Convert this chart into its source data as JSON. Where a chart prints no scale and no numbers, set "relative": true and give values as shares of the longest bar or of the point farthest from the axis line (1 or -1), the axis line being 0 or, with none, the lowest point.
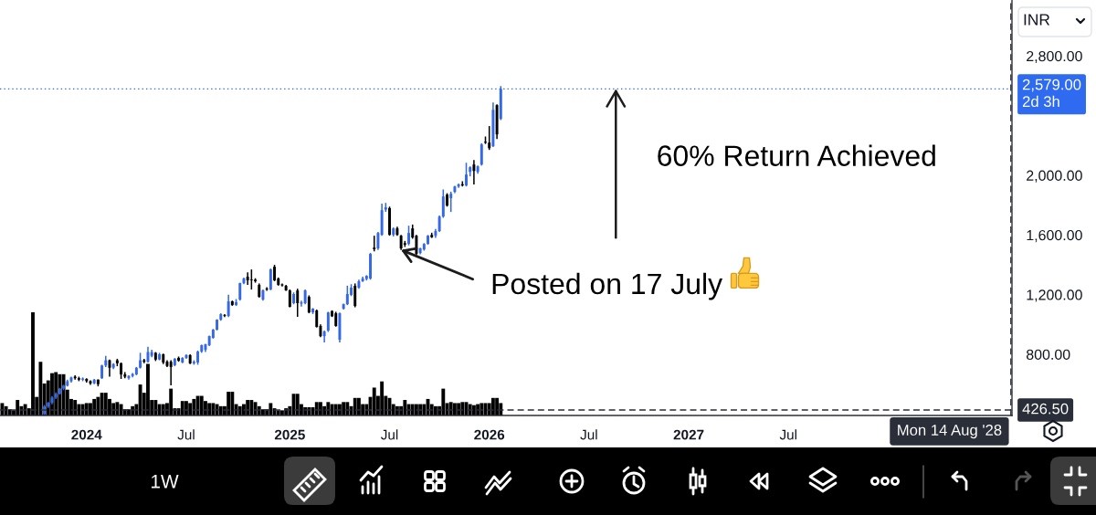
{
  "chart_data": [
    {
      "type": "candlestick",
      "x": [
        "2023-10-16",
        "2023-10-23",
        "2023-10-30",
        "2023-11-06",
        "2023-11-13",
        "2023-11-20",
        "2023-11-27",
        "2023-12-04",
        "2023-12-11",
        "2023-12-18",
        "2023-12-25",
        "2024-01-01",
        "2024-01-08",
        "2024-01-15",
        "2024-01-22",
        "2024-01-29",
        "2024-02-05",
        "2024-02-12",
        "2024-02-19",
        "2024-02-26",
        "2024-03-04",
        "2024-03-11",
        "2024-03-18",
        "2024-03-25",
        "2024-04-01",
        "2024-04-08",
        "2024-04-15",
        "2024-04-22",
        "2024-04-29",
        "2024-05-06",
        "2024-05-13",
        "2024-05-20",
        "2024-05-27",
        "2024-06-03",
        "2024-06-10",
        "2024-06-17",
        "2024-06-24",
        "2024-07-01",
        "2024-07-08",
        "2024-07-15",
        "2024-07-22",
        "2024-07-29",
        "2024-08-05",
        "2024-08-12",
        "2024-08-19",
        "2024-08-26",
        "2024-09-02",
        "2024-09-09",
        "2024-09-16",
        "2024-09-23",
        "2024-09-30",
        "2024-10-07",
        "2024-10-14",
        "2024-10-21",
        "2024-10-28",
        "2024-11-04",
        "2024-11-11",
        "2024-11-18",
        "2024-11-25",
        "2024-12-02",
        "2024-12-09",
        "2024-12-16",
        "2024-12-23",
        "2024-12-30",
        "2025-01-06",
        "2025-01-13",
        "2025-01-20",
        "2025-01-27",
        "2025-02-03",
        "2025-02-10",
        "2025-02-17",
        "2025-02-24",
        "2025-03-03",
        "2025-03-10",
        "2025-03-17",
        "2025-03-24",
        "2025-03-31",
        "2025-04-07",
        "2025-04-14",
        "2025-04-21",
        "2025-04-28",
        "2025-05-05",
        "2025-05-12",
        "2025-05-19",
        "2025-05-26",
        "2025-06-02",
        "2025-06-09",
        "2025-06-16",
        "2025-06-23",
        "2025-06-30",
        "2025-07-07",
        "2025-07-14",
        "2025-07-21",
        "2025-07-28",
        "2025-08-04",
        "2025-08-11",
        "2025-08-18",
        "2025-08-25",
        "2025-09-01",
        "2025-09-08",
        "2025-09-15",
        "2025-09-22",
        "2025-09-29",
        "2025-10-06",
        "2025-10-13",
        "2025-10-20",
        "2025-10-27",
        "2025-11-03",
        "2025-11-10",
        "2025-11-17",
        "2025-11-24",
        "2025-12-01",
        "2025-12-08",
        "2025-12-15",
        "2025-12-22",
        "2025-12-29",
        "2026-01-05",
        "2026-01-12",
        "2026-01-19",
        "2026-01-26"
      ],
      "ohlc": [
        [
          400,
          460,
          395,
          450
        ],
        [
          450,
          480,
          440,
          475
        ],
        [
          475,
          520,
          465,
          510
        ],
        [
          510,
          545,
          500,
          535
        ],
        [
          535,
          575,
          530,
          570
        ],
        [
          570,
          595,
          560,
          590
        ],
        [
          590,
          630,
          585,
          620
        ],
        [
          620,
          650,
          610,
          645
        ],
        [
          650,
          660,
          630,
          640
        ],
        [
          640,
          650,
          620,
          630
        ],
        [
          630,
          645,
          620,
          638
        ],
        [
          635,
          640,
          610,
          620
        ],
        [
          620,
          625,
          595,
          605
        ],
        [
          605,
          635,
          600,
          630
        ],
        [
          630,
          632,
          585,
          600
        ],
        [
          640,
          730,
          635,
          725
        ],
        [
          725,
          790,
          715,
          760
        ],
        [
          760,
          765,
          650,
          710
        ],
        [
          710,
          740,
          700,
          735
        ],
        [
          760,
          770,
          720,
          740
        ],
        [
          740,
          745,
          635,
          665
        ],
        [
          665,
          680,
          640,
          650
        ],
        [
          640,
          660,
          630,
          655
        ],
        [
          655,
          675,
          645,
          668
        ],
        [
          665,
          715,
          660,
          710
        ],
        [
          710,
          810,
          705,
          760
        ],
        [
          760,
          770,
          740,
          750
        ],
        [
          750,
          850,
          745,
          815
        ],
        [
          790,
          830,
          780,
          815
        ],
        [
          810,
          815,
          755,
          765
        ],
        [
          765,
          810,
          760,
          800
        ],
        [
          800,
          805,
          735,
          745
        ],
        [
          750,
          760,
          715,
          722
        ],
        [
          750,
          760,
          592,
          715
        ],
        [
          727,
          775,
          720,
          770
        ],
        [
          776,
          785,
          750,
          757
        ],
        [
          745,
          780,
          740,
          776
        ],
        [
          776,
          800,
          770,
          794
        ],
        [
          794,
          800,
          735,
          739
        ],
        [
          740,
          760,
          730,
          750
        ],
        [
          745,
          825,
          730,
          818
        ],
        [
          818,
          865,
          810,
          861
        ],
        [
          830,
          870,
          815,
          867
        ],
        [
          861,
          925,
          855,
          922
        ],
        [
          910,
          970,
          905,
          965
        ],
        [
          965,
          1035,
          960,
          1032
        ],
        [
          1032,
          1075,
          1025,
          1069
        ],
        [
          1062,
          1070,
          1050,
          1057
        ],
        [
          1057,
          1200,
          1050,
          1155
        ],
        [
          1155,
          1160,
          1125,
          1130
        ],
        [
          1130,
          1170,
          1125,
          1150
        ],
        [
          1167,
          1280,
          1160,
          1277
        ],
        [
          1277,
          1315,
          1270,
          1308
        ],
        [
          1320,
          1350,
          1265,
          1296
        ],
        [
          1300,
          1369,
          1234,
          1296
        ],
        [
          1300,
          1310,
          1280,
          1290
        ],
        [
          1265,
          1275,
          1180,
          1185
        ],
        [
          1167,
          1235,
          1160,
          1228
        ],
        [
          1240,
          1250,
          1225,
          1234
        ],
        [
          1234,
          1375,
          1230,
          1369
        ],
        [
          1387,
          1400,
          1290,
          1296
        ],
        [
          1308,
          1315,
          1260,
          1265
        ],
        [
          1268,
          1275,
          1255,
          1262
        ],
        [
          1259,
          1265,
          1225,
          1228
        ],
        [
          1228,
          1235,
          1115,
          1118
        ],
        [
          1143,
          1215,
          1135,
          1204
        ],
        [
          1228,
          1240,
          1051,
          1143
        ],
        [
          1140,
          1160,
          1120,
          1148
        ],
        [
          1143,
          1235,
          1135,
          1228
        ],
        [
          1185,
          1195,
          1075,
          1081
        ],
        [
          1081,
          1110,
          1070,
          1106
        ],
        [
          1094,
          1100,
          980,
          983
        ],
        [
          990,
          1000,
          915,
          922
        ],
        [
          922,
          960,
          880,
          953
        ],
        [
          959,
          1085,
          950,
          1081
        ],
        [
          1090,
          1095,
          1050,
          1055
        ],
        [
          1075,
          1085,
          985,
          990
        ],
        [
          898,
          1080,
          880,
          1075
        ],
        [
          1106,
          1140,
          1100,
          1136
        ],
        [
          1136,
          1260,
          1130,
          1204
        ],
        [
          1198,
          1270,
          1190,
          1247
        ],
        [
          1259,
          1275,
          1115,
          1124
        ],
        [
          1247,
          1300,
          1240,
          1290
        ],
        [
          1290,
          1320,
          1285,
          1308
        ],
        [
          1305,
          1330,
          1295,
          1326
        ],
        [
          1308,
          1480,
          1300,
          1473
        ],
        [
          1515,
          1595,
          1490,
          1505
        ],
        [
          1510,
          1620,
          1500,
          1613
        ],
        [
          1601,
          1810,
          1595,
          1766
        ],
        [
          1770,
          1815,
          1755,
          1785
        ],
        [
          1780,
          1790,
          1595,
          1601
        ],
        [
          1601,
          1650,
          1590,
          1644
        ],
        [
          1644,
          1655,
          1595,
          1601
        ],
        [
          1595,
          1600,
          1500,
          1510
        ],
        [
          1545,
          1560,
          1520,
          1535
        ],
        [
          1540,
          1662,
          1530,
          1613
        ],
        [
          1644,
          1670,
          1575,
          1583
        ],
        [
          1595,
          1600,
          1465,
          1473
        ],
        [
          1479,
          1515,
          1470,
          1510
        ],
        [
          1503,
          1545,
          1495,
          1540
        ],
        [
          1540,
          1600,
          1535,
          1595
        ],
        [
          1600,
          1615,
          1580,
          1585
        ],
        [
          1595,
          1640,
          1580,
          1626
        ],
        [
          1626,
          1730,
          1620,
          1723
        ],
        [
          1723,
          1905,
          1715,
          1858
        ],
        [
          1870,
          1880,
          1790,
          1797
        ],
        [
          1846,
          1890,
          1754,
          1876
        ],
        [
          1889,
          1930,
          1880,
          1925
        ],
        [
          1925,
          1945,
          1915,
          1938
        ],
        [
          1940,
          1960,
          1925,
          1932
        ],
        [
          1932,
          2084,
          1925,
          2005
        ],
        [
          2023,
          2060,
          1993,
          2054
        ],
        [
          2072,
          2103,
          1938,
          2029
        ],
        [
          2023,
          2065,
          2010,
          2060
        ],
        [
          2072,
          2215,
          2065,
          2207
        ],
        [
          2225,
          2260,
          2210,
          2219
        ],
        [
          2219,
          2330,
          2170,
          2182
        ],
        [
          2195,
          2488,
          2190,
          2439
        ],
        [
          2470,
          2475,
          2243,
          2274
        ],
        [
          2378,
          2598,
          2370,
          2579
        ]
      ],
      "colors": [
        "#3468e8",
        "#3468e8",
        "#3468e8",
        "#3468e8",
        "#3468e8",
        "#3468e8",
        "#3468e8",
        "#3468e8",
        "#000000",
        "#000000",
        "#3468e8",
        "#000000",
        "#000000",
        "#3468e8",
        "#000000",
        "#3468e8",
        "#3468e8",
        "#000000",
        "#3468e8",
        "#000000",
        "#000000",
        "#000000",
        "#3468e8",
        "#3468e8",
        "#3468e8",
        "#3468e8",
        "#000000",
        "#3468e8",
        "#3468e8",
        "#000000",
        "#3468e8",
        "#000000",
        "#000000",
        "#000000",
        "#3468e8",
        "#000000",
        "#3468e8",
        "#3468e8",
        "#000000",
        "#3468e8",
        "#3468e8",
        "#3468e8",
        "#3468e8",
        "#3468e8",
        "#3468e8",
        "#3468e8",
        "#3468e8",
        "#000000",
        "#3468e8",
        "#000000",
        "#3468e8",
        "#3468e8",
        "#3468e8",
        "#000000",
        "#000000",
        "#000000",
        "#000000",
        "#3468e8",
        "#000000",
        "#3468e8",
        "#000000",
        "#000000",
        "#000000",
        "#000000",
        "#000000",
        "#3468e8",
        "#000000",
        "#3468e8",
        "#3468e8",
        "#000000",
        "#3468e8",
        "#000000",
        "#000000",
        "#3468e8",
        "#3468e8",
        "#000000",
        "#000000",
        "#3468e8",
        "#3468e8",
        "#3468e8",
        "#3468e8",
        "#000000",
        "#3468e8",
        "#3468e8",
        "#3468e8",
        "#3468e8",
        "#000000",
        "#3468e8",
        "#3468e8",
        "#3468e8",
        "#000000",
        "#3468e8",
        "#000000",
        "#000000",
        "#000000",
        "#3468e8",
        "#000000",
        "#000000",
        "#3468e8",
        "#3468e8",
        "#3468e8",
        "#000000",
        "#3468e8",
        "#3468e8",
        "#3468e8",
        "#000000",
        "#3468e8",
        "#3468e8",
        "#3468e8",
        "#000000",
        "#3468e8",
        "#3468e8",
        "#000000",
        "#3468e8",
        "#3468e8",
        "#000000",
        "#000000",
        "#3468e8",
        "#000000",
        "#3468e8"
      ],
      "xlim": [
        "2023-07-27",
        "2028-08-16"
      ],
      "ylim": [
        390,
        3175
      ],
      "xticks": [
        {
          "value": "2024-01-01",
          "label": "2024"
        },
        {
          "value": "2024-07-01",
          "label": "Jul"
        },
        {
          "value": "2025-01-06",
          "label": "2025"
        },
        {
          "value": "2025-07-07",
          "label": "Jul"
        },
        {
          "value": "2026-01-05",
          "label": "2026"
        },
        {
          "value": "2026-07-06",
          "label": "Jul"
        },
        {
          "value": "2027-01-04",
          "label": "2027"
        },
        {
          "value": "2027-07-05",
          "label": "Jul"
        }
      ],
      "yticks": [
        {
          "value": 800,
          "label": "800.00"
        },
        {
          "value": 1200,
          "label": "1,200.00"
        },
        {
          "value": 1600,
          "label": "1,600.00"
        },
        {
          "value": 2000,
          "label": "2,000.00"
        },
        {
          "value": 2800,
          "label": "2,800.00"
        }
      ],
      "ylabel": "INR",
      "ref_lines": [
        {
          "axis": "y",
          "value": 2579,
          "label": "2,579.00\n2d 3h",
          "color": "#2f6bf0",
          "line_style": "dotted"
        },
        {
          "axis": "y",
          "value": 426.5,
          "label": "426.50",
          "color": "#2a2e39",
          "line_style": "dashed"
        },
        {
          "axis": "x",
          "value": "2028-08-14",
          "label": "Mon 14 Aug '28",
          "color": "#2a2e39",
          "line_style": "dashed"
        }
      ],
      "annotations": [
        {
          "text": "60% Return Achieved",
          "x": "2026-08-24",
          "y": 2579
        },
        {
          "text": "Posted on 17 July",
          "x": "2025-07-28",
          "y": 1500
        },
        "1W"
      ]
    },
    {
      "type": "bar",
      "x": [
        "2023-07-31",
        "2023-08-07",
        "2023-08-14",
        "2023-08-21",
        "2023-08-28",
        "2023-09-04",
        "2023-09-11",
        "2023-09-18",
        "2023-09-25",
        "2023-10-02",
        "2023-10-09",
        "2023-10-16",
        "2023-10-23",
        "2023-10-30",
        "2023-11-06",
        "2023-11-13",
        "2023-11-20",
        "2023-11-27",
        "2023-12-04",
        "2023-12-11",
        "2023-12-18",
        "2023-12-25",
        "2024-01-01",
        "2024-01-08",
        "2024-01-15",
        "2024-01-22",
        "2024-01-29",
        "2024-02-05",
        "2024-02-12",
        "2024-02-19",
        "2024-02-26",
        "2024-03-04",
        "2024-03-11",
        "2024-03-18",
        "2024-03-25",
        "2024-04-01",
        "2024-04-08",
        "2024-04-15",
        "2024-04-22",
        "2024-04-29",
        "2024-05-06",
        "2024-05-13",
        "2024-05-20",
        "2024-05-27",
        "2024-06-03",
        "2024-06-10",
        "2024-06-17",
        "2024-06-24",
        "2024-07-01",
        "2024-07-08",
        "2024-07-15",
        "2024-07-22",
        "2024-07-29",
        "2024-08-05",
        "2024-08-12",
        "2024-08-19",
        "2024-08-26",
        "2024-09-02",
        "2024-09-09",
        "2024-09-16",
        "2024-09-23",
        "2024-09-30",
        "2024-10-07",
        "2024-10-14",
        "2024-10-21",
        "2024-10-28",
        "2024-11-04",
        "2024-11-11",
        "2024-11-18",
        "2024-11-25",
        "2024-12-02",
        "2024-12-09",
        "2024-12-16",
        "2024-12-23",
        "2024-12-30",
        "2025-01-06",
        "2025-01-13",
        "2025-01-20",
        "2025-01-27",
        "2025-02-03",
        "2025-02-10",
        "2025-02-17",
        "2025-02-24",
        "2025-03-03",
        "2025-03-10",
        "2025-03-17",
        "2025-03-24",
        "2025-03-31",
        "2025-04-07",
        "2025-04-14",
        "2025-04-21",
        "2025-04-28",
        "2025-05-05",
        "2025-05-12",
        "2025-05-19",
        "2025-05-26",
        "2025-06-02",
        "2025-06-09",
        "2025-06-16",
        "2025-06-23",
        "2025-06-30",
        "2025-07-07",
        "2025-07-14",
        "2025-07-21",
        "2025-07-28",
        "2025-08-04",
        "2025-08-11",
        "2025-08-18",
        "2025-08-25",
        "2025-09-01",
        "2025-09-08",
        "2025-09-15",
        "2025-09-22",
        "2025-09-29",
        "2025-10-06",
        "2025-10-13",
        "2025-10-20",
        "2025-10-27",
        "2025-11-03",
        "2025-11-10",
        "2025-11-17",
        "2025-11-24",
        "2025-12-01",
        "2025-12-08",
        "2025-12-15",
        "2025-12-22",
        "2025-12-29",
        "2026-01-05",
        "2026-01-12",
        "2026-01-19",
        "2026-01-26"
      ],
      "values": [
        0.12,
        0.09,
        0.06,
        0.05,
        0.15,
        0.09,
        0.11,
        0.07,
        1,
        0.18,
        0.52,
        0.31,
        0.34,
        0.41,
        0.42,
        0.4,
        0.4,
        0.25,
        0.16,
        0.15,
        0.11,
        0.11,
        0.12,
        0.12,
        0.16,
        0.18,
        0.22,
        0.22,
        0.16,
        0.12,
        0.13,
        0.11,
        0.06,
        0.06,
        0.09,
        0.11,
        0.3,
        0.22,
        0.5,
        0.15,
        0.15,
        0.11,
        0.11,
        0.12,
        0.26,
        0.07,
        0.07,
        0.14,
        0.14,
        0.12,
        0.16,
        0.19,
        0.19,
        0.14,
        0.12,
        0.12,
        0.11,
        0.09,
        0.09,
        0.23,
        0.23,
        0.11,
        0.09,
        0.11,
        0.15,
        0.15,
        0.13,
        0.09,
        0.06,
        0.06,
        0.12,
        0.07,
        0.05,
        0.05,
        0.07,
        0.09,
        0.21,
        0.21,
        0.11,
        0.08,
        0.08,
        0.08,
        0.13,
        0.13,
        0.09,
        0.13,
        0.11,
        0.11,
        0.11,
        0.13,
        0.13,
        0.09,
        0.17,
        0.17,
        0.11,
        0.11,
        0.18,
        0.27,
        0.19,
        0.33,
        0.19,
        0.17,
        0.11,
        0.09,
        0.09,
        0.15,
        0.11,
        0.11,
        0.11,
        0.11,
        0.11,
        0.16,
        0.11,
        0.09,
        0.09,
        0.26,
        0.12,
        0.13,
        0.12,
        0.12,
        0.13,
        0.13,
        0.11,
        0.1,
        0.11,
        0.12,
        0.12,
        0.12,
        0.17,
        0.17,
        0.12
      ],
      "color": "#000000",
      "relative": true,
      "xlim": [
        "2023-07-27",
        "2028-08-16"
      ],
      "tick_labels": false
    }
  ]
}
